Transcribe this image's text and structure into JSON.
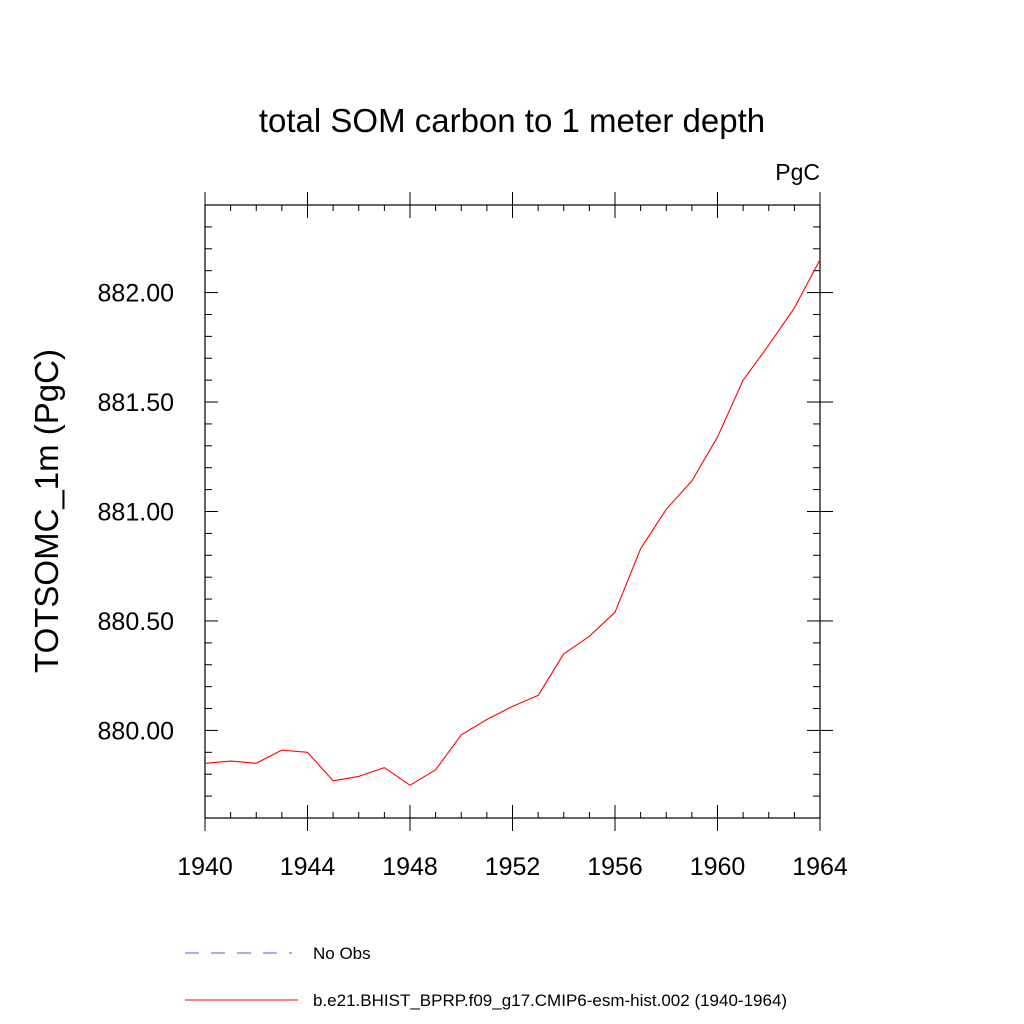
{
  "chart_data": {
    "type": "line",
    "title": "total SOM carbon to 1 meter depth",
    "units_label": "PgC",
    "xlabel": "",
    "ylabel": "TOTSOMC_1m  (PgC)",
    "xlim": [
      1940,
      1964
    ],
    "ylim": [
      879.6,
      882.4
    ],
    "x_ticks": [
      1940,
      1944,
      1948,
      1952,
      1956,
      1960,
      1964
    ],
    "x_tick_labels": [
      "1940",
      "1944",
      "1948",
      "1952",
      "1956",
      "1960",
      "1964"
    ],
    "x_minor_step": 1,
    "y_ticks": [
      880.0,
      880.5,
      881.0,
      881.5,
      882.0
    ],
    "y_tick_labels": [
      "880.00",
      "880.50",
      "881.00",
      "881.50",
      "882.00"
    ],
    "y_minor_step": 0.1,
    "grid": false,
    "series": [
      {
        "name": "b.e21.BHIST_BPRP.f09_g17.CMIP6-esm-hist.002 (1940-1964)",
        "color": "#ff0000",
        "style": "solid",
        "x": [
          1940,
          1941,
          1942,
          1943,
          1944,
          1945,
          1946,
          1947,
          1948,
          1949,
          1950,
          1951,
          1952,
          1953,
          1954,
          1955,
          1956,
          1957,
          1958,
          1959,
          1960,
          1961,
          1962,
          1963,
          1964
        ],
        "values": [
          879.85,
          879.86,
          879.85,
          879.91,
          879.9,
          879.77,
          879.79,
          879.83,
          879.75,
          879.82,
          879.98,
          880.05,
          880.11,
          880.16,
          880.35,
          880.43,
          880.54,
          880.83,
          881.01,
          881.14,
          881.34,
          881.6,
          881.76,
          881.93,
          882.15
        ]
      }
    ],
    "legend": [
      {
        "label": "No Obs",
        "color": "#6a5acd",
        "style": "dashed"
      },
      {
        "label": "b.e21.BHIST_BPRP.f09_g17.CMIP6-esm-hist.002 (1940-1964)",
        "color": "#ff0000",
        "style": "solid"
      }
    ],
    "legend_position": "bottom"
  }
}
